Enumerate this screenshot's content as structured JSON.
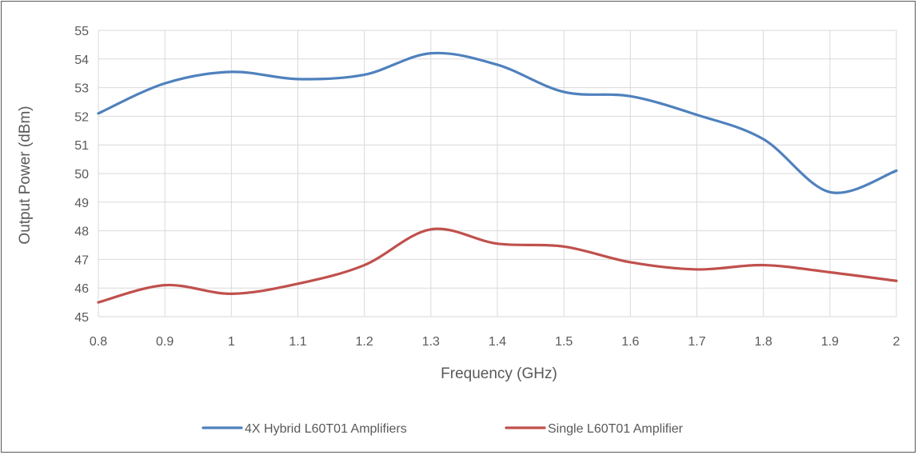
{
  "chart_data": {
    "type": "line",
    "title": "",
    "xlabel": "Frequency (GHz)",
    "ylabel": "Output Power (dBm)",
    "xlim": [
      0.8,
      2.0
    ],
    "ylim": [
      45,
      55
    ],
    "x_ticks": [
      "0.8",
      "0.9",
      "1",
      "1.1",
      "1.2",
      "1.3",
      "1.4",
      "1.5",
      "1.6",
      "1.7",
      "1.8",
      "1.9",
      "2"
    ],
    "y_ticks": [
      "45",
      "46",
      "47",
      "48",
      "49",
      "50",
      "51",
      "52",
      "53",
      "54",
      "55"
    ],
    "grid": true,
    "smooth": true,
    "legend_position": "bottom",
    "x": [
      0.8,
      0.9,
      1.0,
      1.1,
      1.2,
      1.3,
      1.4,
      1.5,
      1.6,
      1.7,
      1.8,
      1.9,
      2.0
    ],
    "series": [
      {
        "name": "4X Hybrid L60T01 Amplifiers",
        "color": "#4f81bd",
        "values": [
          52.1,
          53.15,
          53.55,
          53.3,
          53.45,
          54.2,
          53.8,
          52.85,
          52.7,
          52.05,
          51.2,
          49.35,
          50.1
        ]
      },
      {
        "name": "Single L60T01 Amplifier",
        "color": "#c0504d",
        "values": [
          45.5,
          46.1,
          45.8,
          46.15,
          46.8,
          48.05,
          47.55,
          47.45,
          46.9,
          46.65,
          46.8,
          46.55,
          46.25
        ]
      }
    ]
  }
}
